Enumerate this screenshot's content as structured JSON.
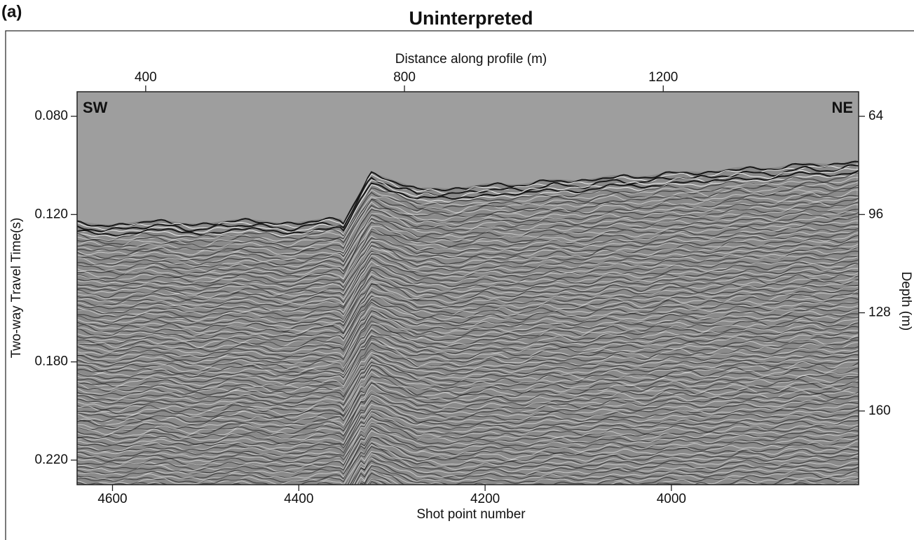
{
  "panel_label": "(a)",
  "chart_data": {
    "type": "seismic",
    "title": "Uninterpreted",
    "annotations": [
      "SW",
      "NE"
    ],
    "x_label": "Distance along profile (m)",
    "xlim": [
      294,
      1502
    ],
    "xticks": [
      400,
      800,
      1200
    ],
    "x2_label": "Shot point number",
    "x2lim": [
      4638,
      3799
    ],
    "x2ticks": [
      4600,
      4400,
      4200,
      4000
    ],
    "y_label": "Two-way Travel Time(s)",
    "ylim": [
      0.07,
      0.23
    ],
    "y_reversed": true,
    "yticks": [
      {
        "value": 0.08,
        "label": "0.080"
      },
      {
        "value": 0.12,
        "label": "0.120"
      },
      {
        "value": 0.18,
        "label": "0.180"
      },
      {
        "value": 0.22,
        "label": "0.220"
      }
    ],
    "y2_label": "Depth (m)",
    "y2lim": [
      56,
      184
    ],
    "y2ticks": [
      64,
      96,
      128,
      160
    ]
  }
}
